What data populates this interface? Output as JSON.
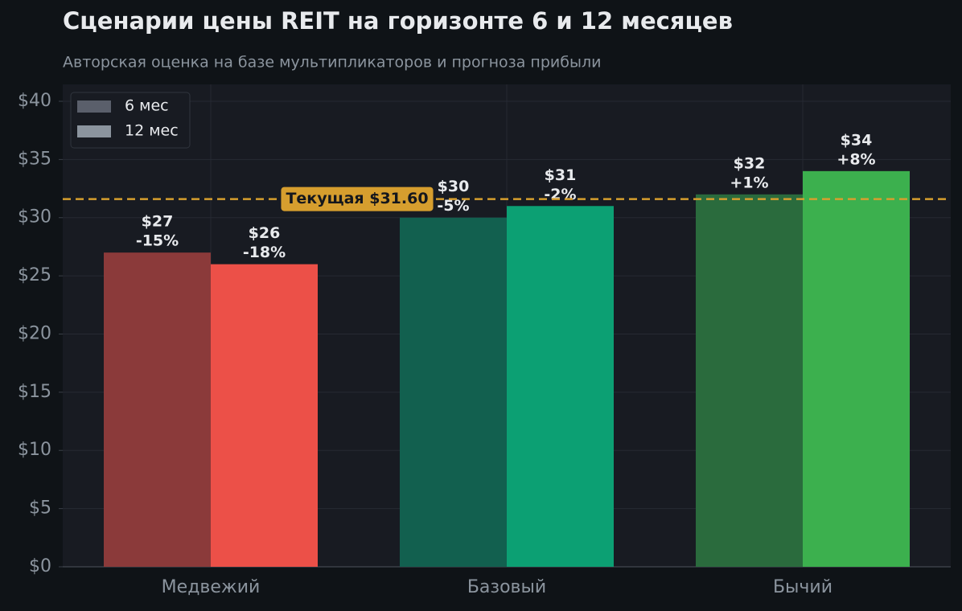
{
  "chart_data": {
    "type": "bar",
    "title": "Сценарии цены REIT на горизонте 6 и 12 месяцев",
    "subtitle": "Авторская оценка на базе мультипликаторов и прогноза прибыли",
    "categories": [
      "Медвежий",
      "Базовый",
      "Бычий"
    ],
    "series": [
      {
        "name": "6 мес",
        "color": "#5a5f6b",
        "colors": [
          "#8b3a3a",
          "#12604f",
          "#2a6b3d"
        ],
        "values": [
          27,
          30,
          32
        ],
        "value_labels": [
          "$27",
          "$30",
          "$32"
        ],
        "change_labels": [
          "-15%",
          "-5%",
          "+1%"
        ]
      },
      {
        "name": "12 мес",
        "color": "#8b949e",
        "colors": [
          "#ec5048",
          "#0ca073",
          "#3cb04e"
        ],
        "values": [
          26,
          31,
          34
        ],
        "value_labels": [
          "$26",
          "$31",
          "$34"
        ],
        "change_labels": [
          "-18%",
          "-2%",
          "+8%"
        ]
      }
    ],
    "ylim": [
      0,
      41.45
    ],
    "yticks": [
      {
        "value": 0,
        "label": "$0"
      },
      {
        "value": 5,
        "label": "$5"
      },
      {
        "value": 10,
        "label": "$10"
      },
      {
        "value": 15,
        "label": "$15"
      },
      {
        "value": 20,
        "label": "$20"
      },
      {
        "value": 25,
        "label": "$25"
      },
      {
        "value": 30,
        "label": "$30"
      },
      {
        "value": 35,
        "label": "$35"
      },
      {
        "value": 40,
        "label": "$40"
      }
    ],
    "grid": true,
    "legend": "upper left",
    "reference_line": {
      "value": 31.6,
      "label": "Текущая $31.60",
      "color": "#d69e2e"
    }
  }
}
